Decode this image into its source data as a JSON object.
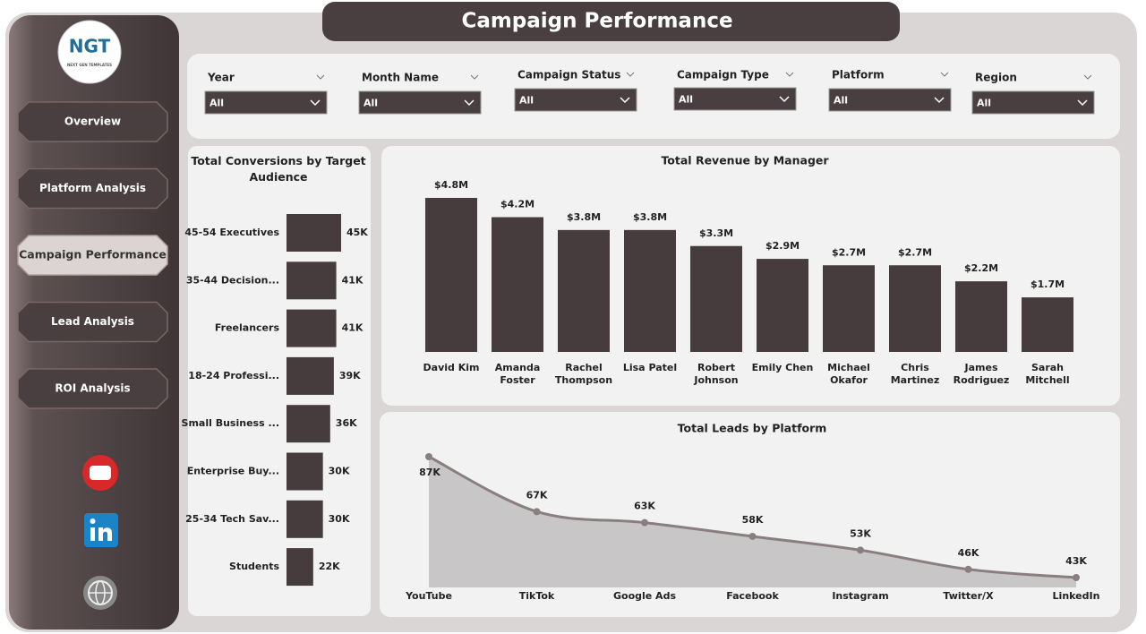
{
  "header": {
    "title": "Campaign Performance"
  },
  "sidebar": {
    "logo": {
      "mark": "NGT",
      "tagline": "NEXT GEN TEMPLATES"
    },
    "nav": [
      "Overview",
      "Platform Analysis",
      "Campaign Performance",
      "Lead Analysis",
      "ROI Analysis"
    ],
    "active": 2
  },
  "filters": [
    {
      "label": "Year",
      "value": "All"
    },
    {
      "label": "Month Name",
      "value": "All"
    },
    {
      "label": "Campaign Status",
      "value": "All"
    },
    {
      "label": "Campaign Type",
      "value": "All"
    },
    {
      "label": "Platform",
      "value": "All"
    },
    {
      "label": "Region",
      "value": "All"
    }
  ],
  "chart_data": [
    {
      "type": "hbar",
      "title": "Total Conversions by Target Audience",
      "categories": [
        "45-54 Executives",
        "35-44 Decision...",
        "Freelancers",
        "18-24 Professi...",
        "Small Business ...",
        "Enterprise Buy...",
        "25-34 Tech Sav...",
        "Students"
      ],
      "values": [
        45,
        41,
        41,
        39,
        36,
        30,
        30,
        22
      ],
      "value_labels": [
        "45K",
        "41K",
        "41K",
        "39K",
        "36K",
        "30K",
        "30K",
        "22K"
      ],
      "color": "#463c3d"
    },
    {
      "type": "bar",
      "title": "Total Revenue by Manager",
      "categories": [
        "David Kim",
        "Amanda Foster",
        "Rachel Thompson",
        "Lisa Patel",
        "Robert Johnson",
        "Emily Chen",
        "Michael Okafor",
        "Chris Martinez",
        "James Rodriguez",
        "Sarah Mitchell"
      ],
      "values": [
        4.8,
        4.2,
        3.8,
        3.8,
        3.3,
        2.9,
        2.7,
        2.7,
        2.2,
        1.7
      ],
      "value_labels": [
        "$4.8M",
        "$4.2M",
        "$3.8M",
        "$3.8M",
        "$3.3M",
        "$2.9M",
        "$2.7M",
        "$2.7M",
        "$2.2M",
        "$1.7M"
      ],
      "color": "#463c3d"
    },
    {
      "type": "area",
      "title": "Total Leads by Platform",
      "categories": [
        "YouTube",
        "TikTok",
        "Google Ads",
        "Facebook",
        "Instagram",
        "Twitter/X",
        "LinkedIn"
      ],
      "values": [
        87,
        67,
        63,
        58,
        53,
        46,
        43
      ],
      "value_labels": [
        "87K",
        "67K",
        "63K",
        "58K",
        "53K",
        "46K",
        "43K"
      ],
      "color": "#8a7f80"
    }
  ]
}
